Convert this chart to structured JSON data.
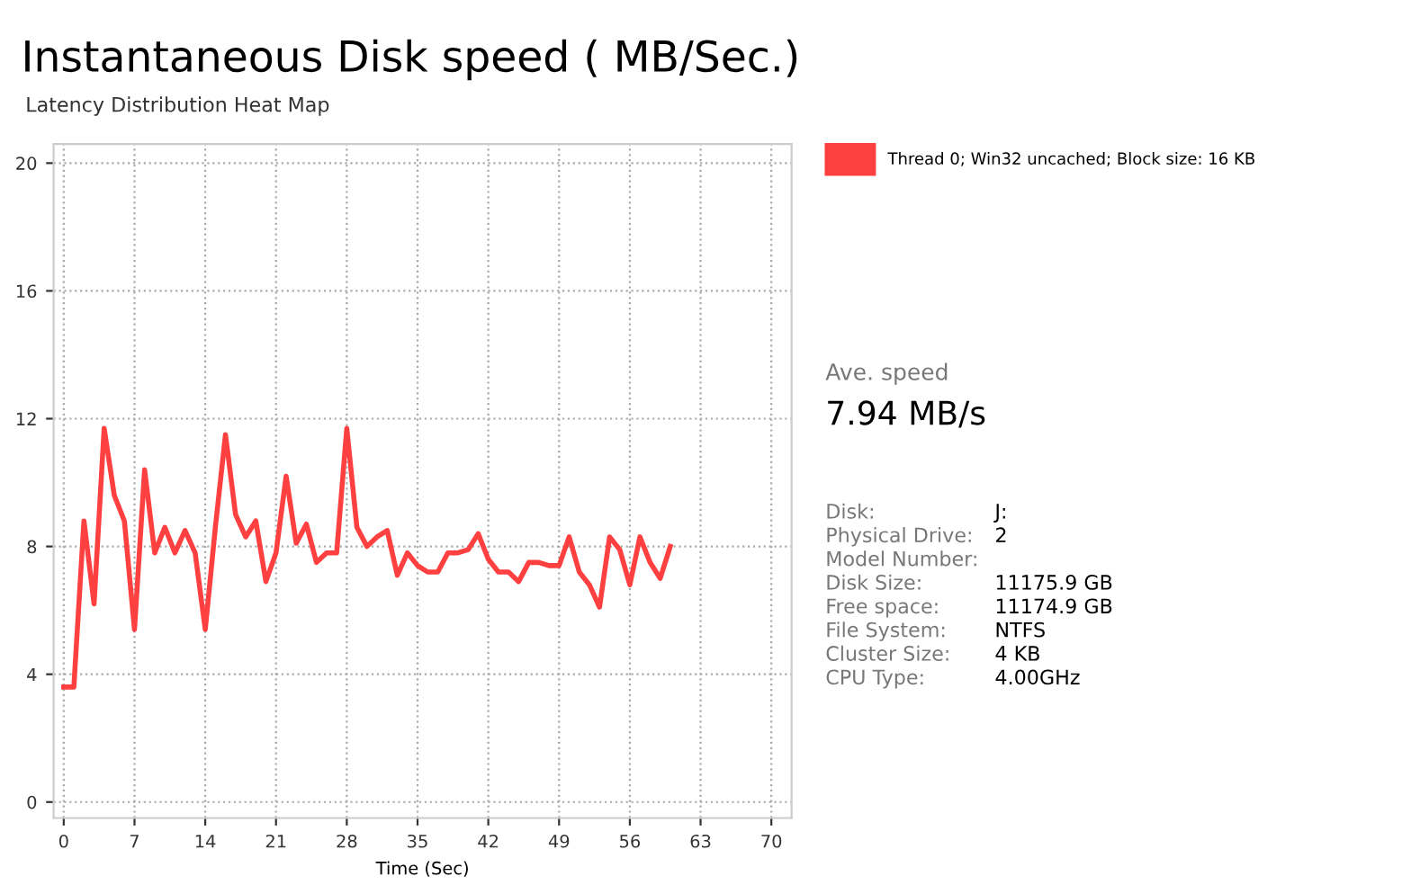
{
  "chart_data": {
    "type": "line",
    "title": "Instantaneous Disk speed ( MB/Sec.)",
    "subtitle": "Latency Distribution Heat Map",
    "xlabel": "Time (Sec)",
    "x": [
      0,
      1,
      2,
      3,
      4,
      5,
      6,
      7,
      8,
      9,
      10,
      11,
      12,
      13,
      14,
      15,
      16,
      17,
      18,
      19,
      20,
      21,
      22,
      23,
      24,
      25,
      26,
      27,
      28,
      29,
      30,
      31,
      32,
      33,
      34,
      35,
      36,
      37,
      38,
      39,
      40,
      41,
      42,
      43,
      44,
      45,
      46,
      47,
      48,
      49,
      50,
      51,
      52,
      53,
      54,
      55,
      56,
      57,
      58,
      59,
      60
    ],
    "series": [
      {
        "name": "Thread 0; Win32 uncached; Block size: 16 KB",
        "color": "#ff4040",
        "values": [
          3.6,
          3.6,
          8.8,
          6.2,
          11.7,
          9.6,
          8.8,
          5.4,
          10.4,
          7.8,
          8.6,
          7.8,
          8.5,
          7.8,
          5.4,
          8.6,
          11.5,
          9.0,
          8.3,
          8.8,
          6.9,
          7.8,
          10.2,
          8.1,
          8.7,
          7.5,
          7.8,
          7.8,
          11.7,
          8.6,
          8.0,
          8.3,
          8.5,
          7.1,
          7.8,
          7.4,
          7.2,
          7.2,
          7.8,
          7.8,
          7.9,
          8.4,
          7.6,
          7.2,
          7.2,
          6.9,
          7.5,
          7.5,
          7.4,
          7.4,
          8.3,
          7.2,
          6.8,
          6.1,
          8.3,
          7.9,
          6.8,
          8.3,
          7.5,
          7.0,
          8.0
        ]
      }
    ],
    "xlim": [
      -1,
      72
    ],
    "ylim": [
      -0.5,
      20.6
    ],
    "xticks": [
      0,
      7,
      14,
      21,
      28,
      35,
      42,
      49,
      56,
      63,
      70
    ],
    "yticks": [
      0,
      4,
      8,
      12,
      16,
      20
    ],
    "grid": true,
    "legend": "right",
    "marker": "none",
    "line_style": "solid",
    "annotations": [
      "Ave. speed",
      "7.94 MB/s",
      "Disk:\tJ:",
      "Physical Drive:\t2",
      "Model Number:",
      "Disk Size:\t11175.9 GB",
      "Free space:\t11174.9 GB",
      "File System:\tNTFS",
      "Cluster Size:\t4 KB",
      "CPU Type:\t4.00GHz"
    ]
  }
}
